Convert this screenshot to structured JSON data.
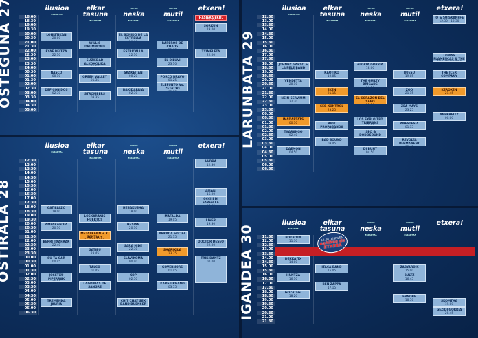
{
  "venues": [
    {
      "name": "ilusioa",
      "sub": "ELKARTEA"
    },
    {
      "name": "elkar tasuna",
      "sub": "ELKARTEA"
    },
    {
      "name": "neska",
      "pre": "HATOR",
      "sub": "ELKARTEA"
    },
    {
      "name": "mutil",
      "pre": "HATOR",
      "sub": "ELKARTEA"
    },
    {
      "name": "etxera!",
      "sub": ""
    }
  ],
  "days": [
    {
      "key": "osteguna",
      "label": "OSTEGUNA 27",
      "times": [
        "18.00",
        "18.30",
        "19.00",
        "19.30",
        "20.00",
        "20.30",
        "21.00",
        "21.30",
        "22.00",
        "22.30",
        "23.00",
        "23.30",
        "24.00",
        "00.30",
        "01.00",
        "01.30",
        "02.00",
        "02.30",
        "03.00",
        "03.30",
        "04.00",
        "04.30",
        "05.00"
      ],
      "events": [
        {
          "col": 0,
          "name": "LOHISTIKAN",
          "time": "20.00"
        },
        {
          "col": 0,
          "name": "EYAE BELTZA",
          "time": "22.10"
        },
        {
          "col": 0,
          "name": "NASCO",
          "time": "00.10"
        },
        {
          "col": 0,
          "name": "DEF CON DOS",
          "time": "02.30"
        },
        {
          "col": 1,
          "name": "WILLIS DRUMMOND",
          "time": "21.00"
        },
        {
          "col": 1,
          "name": "SUZIEDAD ALKOHOLIKA",
          "time": "23.15"
        },
        {
          "col": 1,
          "name": "GREEN VALLEY",
          "time": "01.35"
        },
        {
          "col": 1,
          "name": "STROMBERS",
          "time": "03.35"
        },
        {
          "col": 2,
          "name": "EL SONIDO DE LA ESTRELLA",
          "time": "20.00"
        },
        {
          "col": 2,
          "name": "ESTRICALLA",
          "time": "22.10"
        },
        {
          "col": 2,
          "name": "SKAKEITAN",
          "time": "00.20"
        },
        {
          "col": 2,
          "name": "DAKIDARRIA",
          "time": "02.30"
        },
        {
          "col": 3,
          "name": "RAPEROS DE CHAOS",
          "time": "21.05"
        },
        {
          "col": 3,
          "name": "EL DILUVI",
          "time": "23.10"
        },
        {
          "col": 3,
          "name": "PORCO BRAVO",
          "time": "01.25"
        },
        {
          "col": 3,
          "name": "ELEFUNTO Vs. ZETATXO",
          "time": "02.35"
        },
        {
          "col": 4,
          "name": "HASIERA EKIT. 18.30",
          "time": "",
          "style": "red"
        },
        {
          "col": 4,
          "name": "SORKUN",
          "time": "19.00"
        },
        {
          "col": 4,
          "name": "TXIMELETA",
          "time": "22.00"
        }
      ]
    },
    {
      "key": "ostirala",
      "label": "OSTIRALA 28",
      "times": [
        "12.30",
        "13.00",
        "13.30",
        "14.00",
        "14.30",
        "15.00",
        "15.30",
        "16.00",
        "16.30",
        "17.00",
        "17.30",
        "18.00",
        "18.30",
        "19.00",
        "19.30",
        "20.00",
        "20.30",
        "21.00",
        "21.30",
        "22.00",
        "22.30",
        "23.00",
        "23.30",
        "00.00",
        "00.30",
        "01.00",
        "01.30",
        "02.00",
        "02.30",
        "03.00",
        "03.30",
        "04.00",
        "04.30",
        "05.00",
        "05.30",
        "06.00",
        "06.30"
      ],
      "events": [
        {
          "col": 0,
          "name": "GATILLAZO",
          "time": "18.00"
        },
        {
          "col": 0,
          "name": "AMPARANOIA",
          "time": "20.10"
        },
        {
          "col": 0,
          "name": "BERRI TXARRAK",
          "time": "22.40"
        },
        {
          "col": 0,
          "name": "SU TA GAR",
          "time": "00.45"
        },
        {
          "col": 0,
          "name": "JOSETXU PIPERRAK",
          "time": "02.50"
        },
        {
          "col": 0,
          "name": "TREMENDA JAURIA",
          "time": "05.00"
        },
        {
          "col": 1,
          "name": "LOSKARANIS HUERTOS",
          "time": "19.00"
        },
        {
          "col": 1,
          "name": "METALKANN + X. SANTIA + M.GOROSES",
          "time": "21.15",
          "style": "orange"
        },
        {
          "col": 1,
          "name": "GATIBU",
          "time": "23.45"
        },
        {
          "col": 1,
          "name": "TALCO",
          "time": "01.45"
        },
        {
          "col": 1,
          "name": "LAGRIMAS DE SANGRE",
          "time": "03.45"
        },
        {
          "col": 2,
          "name": "HEBAKUSHA",
          "time": "18.00"
        },
        {
          "col": 2,
          "name": "HESIAN",
          "time": "20.10"
        },
        {
          "col": 2,
          "name": "SARA HIDE",
          "time": "22.30"
        },
        {
          "col": 2,
          "name": "SLAVIKOMA",
          "time": "00.40"
        },
        {
          "col": 2,
          "name": "KOP",
          "time": "02.50"
        },
        {
          "col": 2,
          "name": "CHIT CHAT SEX BAND BUENSER LUIS",
          "time": "05.00"
        },
        {
          "col": 3,
          "name": "MAFALDA",
          "time": "19.05"
        },
        {
          "col": 3,
          "name": "ARKADA SOCIAL",
          "time": "21.15"
        },
        {
          "col": 3,
          "name": "SHARIKILA",
          "time": "23.35",
          "style": "orange"
        },
        {
          "col": 3,
          "name": "GOVERNORS",
          "time": "01.45"
        },
        {
          "col": 3,
          "name": "KAOS URBANO",
          "time": "03.55"
        },
        {
          "col": 4,
          "name": "LURDA",
          "time": "12.30"
        },
        {
          "col": 4,
          "name": "AMARI",
          "time": "16.00"
        },
        {
          "col": 4,
          "name": "OCCHI DI FARFALLA",
          "time": "17.45"
        },
        {
          "col": 4,
          "name": "LIHER",
          "time": "19.30"
        },
        {
          "col": 4,
          "name": "DOCTOR DESEO",
          "time": "22.00"
        },
        {
          "col": 4,
          "name": "TRIKIDANTZ",
          "time": "00.00"
        }
      ]
    },
    {
      "key": "larunbata",
      "label": "LARUNBATA 29",
      "times": [
        "12.30",
        "13.00",
        "13.30",
        "14.00",
        "14.30",
        "15.00",
        "15.30",
        "16.00",
        "16.30",
        "17.00",
        "17.30",
        "18.00",
        "18.30",
        "19.00",
        "19.30",
        "20.00",
        "20.30",
        "21.00",
        "21.30",
        "22.00",
        "22.30",
        "23.00",
        "23.30",
        "00.00",
        "00.30",
        "01.00",
        "01.30",
        "02.00",
        "02.30",
        "03.00",
        "03.30",
        "04.00",
        "04.30",
        "05.00",
        "05.30",
        "06.00",
        "06.30"
      ],
      "events": [
        {
          "col": 0,
          "name": "JOHNNY GARSO & LA PELE BAND",
          "time": "18.00"
        },
        {
          "col": 0,
          "name": "VENDETTA",
          "time": "20.10"
        },
        {
          "col": 0,
          "name": "NEIN SERVIUM",
          "time": "22.20"
        },
        {
          "col": 0,
          "name": "INADAPTATS",
          "time": "00.30",
          "style": "orange"
        },
        {
          "col": 0,
          "name": "TXARANGO",
          "time": "02.40"
        },
        {
          "col": 0,
          "name": "DAEMON",
          "time": "04.50"
        },
        {
          "col": 1,
          "name": "KAOTIKO",
          "time": "19.05"
        },
        {
          "col": 1,
          "name": "EKEN",
          "time": "21.15",
          "style": "orange"
        },
        {
          "col": 1,
          "name": "SES-KONTROL",
          "time": "23.25",
          "style": "orange"
        },
        {
          "col": 1,
          "name": "RIOT PROPAGANDA",
          "time": "01.35"
        },
        {
          "col": 1,
          "name": "BAD SOUND",
          "time": "03.45"
        },
        {
          "col": 2,
          "name": "ALGRIA GORRIA",
          "time": "18.00"
        },
        {
          "col": 2,
          "name": "THE GUILTY BRIGADE",
          "time": "20.10"
        },
        {
          "col": 2,
          "name": "EL CORAZON DEL SAPO",
          "time": "22.20",
          "style": "orange"
        },
        {
          "col": 2,
          "name": "LOS EXPLOITED TRIBRANS",
          "time": "00.30"
        },
        {
          "col": 2,
          "name": "ISEO & DODOSOUND",
          "time": "02.40"
        },
        {
          "col": 2,
          "name": "DJ BUHY",
          "time": "04.50"
        },
        {
          "col": 3,
          "name": "BUESU",
          "time": "19.05"
        },
        {
          "col": 3,
          "name": "ZOO",
          "time": "21.15"
        },
        {
          "col": 3,
          "name": "ZEA MAYS",
          "time": "23.25"
        },
        {
          "col": 3,
          "name": "ANESTESIA",
          "time": "01.35"
        },
        {
          "col": 3,
          "name": "REVOLTA PERMANENT",
          "time": "03.45"
        },
        {
          "col": 4,
          "name": "JO & SUISKANFFE",
          "time": "12.30 - 13.30"
        },
        {
          "col": 4,
          "name": "THE ICER COMPANY",
          "time": "19.00"
        },
        {
          "col": 4,
          "name": "LOMAS FLAMENCAS & THE SNAKEMAKERS",
          "time": "17.45"
        },
        {
          "col": 4,
          "name": "KEROXEN",
          "time": "21.45",
          "style": "orange"
        },
        {
          "col": 4,
          "name": "ANEKBELTZ",
          "time": "00.00"
        }
      ]
    },
    {
      "key": "igandea",
      "label": "IGANDEA 30",
      "times": [
        "11.30",
        "12.00",
        "12.30",
        "13.00",
        "13.30",
        "14.00",
        "14.30",
        "15.00",
        "15.30",
        "16.00",
        "16.30",
        "17.00",
        "17.30",
        "18.00",
        "18.30",
        "19.00",
        "19.30",
        "20.00",
        "20.30",
        "21.00",
        "21.30"
      ],
      "events": [
        {
          "col": 0,
          "name": "POKBOTX",
          "time": "11.30"
        },
        {
          "col": 0,
          "name": "DEKKA TX",
          "time": "14.00"
        },
        {
          "col": 0,
          "name": "HUNTZA",
          "time": "16.10"
        },
        {
          "col": 0,
          "name": "GOZATEGI",
          "time": "18.20"
        },
        {
          "col": 1,
          "name": "ITACA BAND",
          "time": "15.05"
        },
        {
          "col": 1,
          "name": "BEN ZAPPA",
          "time": "17.15"
        },
        {
          "col": 3,
          "name": "ZABYARO K",
          "time": "15.00"
        },
        {
          "col": 3,
          "name": "BULTZ",
          "time": "16.45"
        },
        {
          "col": 3,
          "name": "ERNOBE",
          "time": "18.30"
        },
        {
          "col": 4,
          "name": "SKOMTHA",
          "time": "19.00"
        },
        {
          "col": 4,
          "name": "GEZIDI GORRIA",
          "time": "20.45"
        }
      ]
    }
  ],
  "stamp": {
    "top": "13.00 DESFILEA",
    "text": "nahikoa da ETXERA"
  },
  "colors": {
    "background": "#0f3365",
    "event": "#8fb4d9",
    "highlight": "#f19a2b",
    "red": "#d62127"
  }
}
